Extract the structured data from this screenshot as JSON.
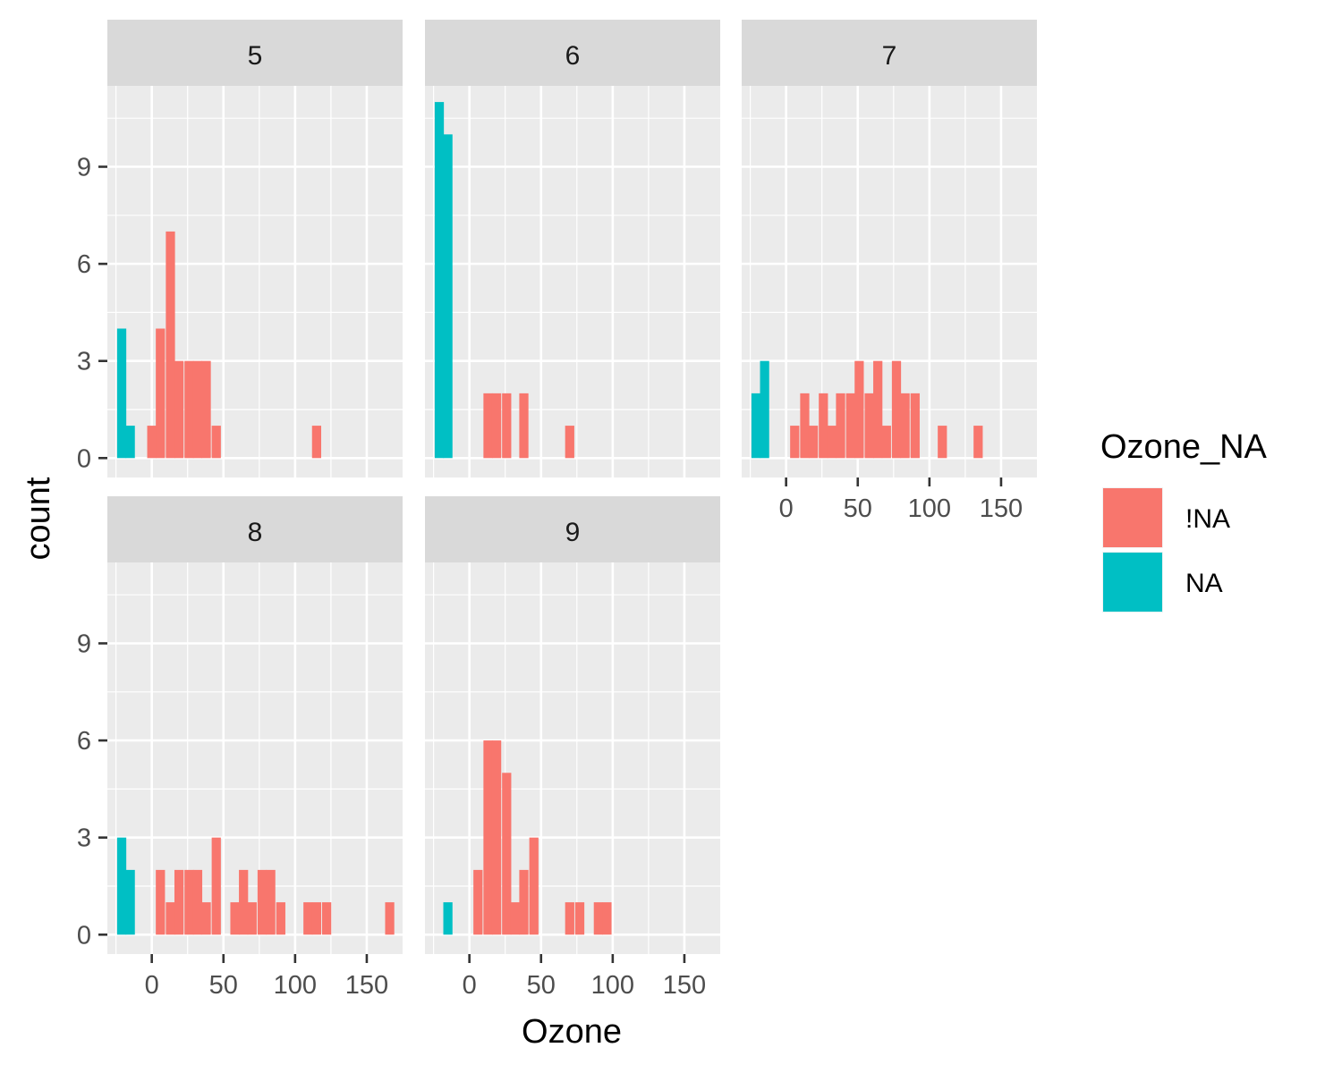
{
  "chart_data": {
    "type": "bar",
    "subtype": "faceted histogram",
    "xlabel": "Ozone",
    "ylabel": "count",
    "x_ticks": [
      0,
      50,
      100,
      150
    ],
    "y_ticks": [
      0,
      3,
      6,
      9
    ],
    "xlim": [
      -31,
      175
    ],
    "ylim": [
      -0.6,
      11.5
    ],
    "bin_width": 6.4,
    "grid": true,
    "legend": {
      "title": "Ozone_NA",
      "placement": "right",
      "entries": [
        {
          "label": "!NA",
          "color": "#F8766D"
        },
        {
          "label": "NA",
          "color": "#00BFC4"
        }
      ]
    },
    "facets": [
      {
        "label": "5",
        "bins": [
          {
            "x": -21,
            "count": 4,
            "group": "NA"
          },
          {
            "x": -15,
            "count": 1,
            "group": "NA"
          },
          {
            "x": 0,
            "count": 1,
            "group": "!NA"
          },
          {
            "x": 6,
            "count": 4,
            "group": "!NA"
          },
          {
            "x": 13,
            "count": 7,
            "group": "!NA"
          },
          {
            "x": 19,
            "count": 3,
            "group": "!NA"
          },
          {
            "x": 26,
            "count": 3,
            "group": "!NA"
          },
          {
            "x": 32,
            "count": 3,
            "group": "!NA"
          },
          {
            "x": 38,
            "count": 3,
            "group": "!NA"
          },
          {
            "x": 45,
            "count": 1,
            "group": "!NA"
          },
          {
            "x": 115,
            "count": 1,
            "group": "!NA"
          }
        ]
      },
      {
        "label": "6",
        "bins": [
          {
            "x": -21,
            "count": 11,
            "group": "NA"
          },
          {
            "x": -15,
            "count": 10,
            "group": "NA"
          },
          {
            "x": 13,
            "count": 2,
            "group": "!NA"
          },
          {
            "x": 19,
            "count": 2,
            "group": "!NA"
          },
          {
            "x": 26,
            "count": 2,
            "group": "!NA"
          },
          {
            "x": 38,
            "count": 2,
            "group": "!NA"
          },
          {
            "x": 70,
            "count": 1,
            "group": "!NA"
          }
        ]
      },
      {
        "label": "7",
        "bins": [
          {
            "x": -21,
            "count": 2,
            "group": "NA"
          },
          {
            "x": -15,
            "count": 3,
            "group": "NA"
          },
          {
            "x": 6,
            "count": 1,
            "group": "!NA"
          },
          {
            "x": 13,
            "count": 2,
            "group": "!NA"
          },
          {
            "x": 19,
            "count": 1,
            "group": "!NA"
          },
          {
            "x": 26,
            "count": 2,
            "group": "!NA"
          },
          {
            "x": 32,
            "count": 1,
            "group": "!NA"
          },
          {
            "x": 38,
            "count": 2,
            "group": "!NA"
          },
          {
            "x": 45,
            "count": 2,
            "group": "!NA"
          },
          {
            "x": 51,
            "count": 3,
            "group": "!NA"
          },
          {
            "x": 58,
            "count": 2,
            "group": "!NA"
          },
          {
            "x": 64,
            "count": 3,
            "group": "!NA"
          },
          {
            "x": 70,
            "count": 1,
            "group": "!NA"
          },
          {
            "x": 77,
            "count": 3,
            "group": "!NA"
          },
          {
            "x": 83,
            "count": 2,
            "group": "!NA"
          },
          {
            "x": 90,
            "count": 2,
            "group": "!NA"
          },
          {
            "x": 109,
            "count": 1,
            "group": "!NA"
          },
          {
            "x": 134,
            "count": 1,
            "group": "!NA"
          }
        ]
      },
      {
        "label": "8",
        "bins": [
          {
            "x": -21,
            "count": 3,
            "group": "NA"
          },
          {
            "x": -15,
            "count": 2,
            "group": "NA"
          },
          {
            "x": 6,
            "count": 2,
            "group": "!NA"
          },
          {
            "x": 13,
            "count": 1,
            "group": "!NA"
          },
          {
            "x": 19,
            "count": 2,
            "group": "!NA"
          },
          {
            "x": 26,
            "count": 2,
            "group": "!NA"
          },
          {
            "x": 32,
            "count": 2,
            "group": "!NA"
          },
          {
            "x": 38,
            "count": 1,
            "group": "!NA"
          },
          {
            "x": 45,
            "count": 3,
            "group": "!NA"
          },
          {
            "x": 58,
            "count": 1,
            "group": "!NA"
          },
          {
            "x": 64,
            "count": 2,
            "group": "!NA"
          },
          {
            "x": 70,
            "count": 1,
            "group": "!NA"
          },
          {
            "x": 77,
            "count": 2,
            "group": "!NA"
          },
          {
            "x": 83,
            "count": 2,
            "group": "!NA"
          },
          {
            "x": 90,
            "count": 1,
            "group": "!NA"
          },
          {
            "x": 109,
            "count": 1,
            "group": "!NA"
          },
          {
            "x": 115,
            "count": 1,
            "group": "!NA"
          },
          {
            "x": 122,
            "count": 1,
            "group": "!NA"
          },
          {
            "x": 166,
            "count": 1,
            "group": "!NA"
          }
        ]
      },
      {
        "label": "9",
        "bins": [
          {
            "x": -15,
            "count": 1,
            "group": "NA"
          },
          {
            "x": 6,
            "count": 2,
            "group": "!NA"
          },
          {
            "x": 13,
            "count": 6,
            "group": "!NA"
          },
          {
            "x": 19,
            "count": 6,
            "group": "!NA"
          },
          {
            "x": 26,
            "count": 5,
            "group": "!NA"
          },
          {
            "x": 32,
            "count": 1,
            "group": "!NA"
          },
          {
            "x": 38,
            "count": 2,
            "group": "!NA"
          },
          {
            "x": 45,
            "count": 3,
            "group": "!NA"
          },
          {
            "x": 70,
            "count": 1,
            "group": "!NA"
          },
          {
            "x": 77,
            "count": 1,
            "group": "!NA"
          },
          {
            "x": 90,
            "count": 1,
            "group": "!NA"
          },
          {
            "x": 96,
            "count": 1,
            "group": "!NA"
          }
        ]
      }
    ]
  }
}
